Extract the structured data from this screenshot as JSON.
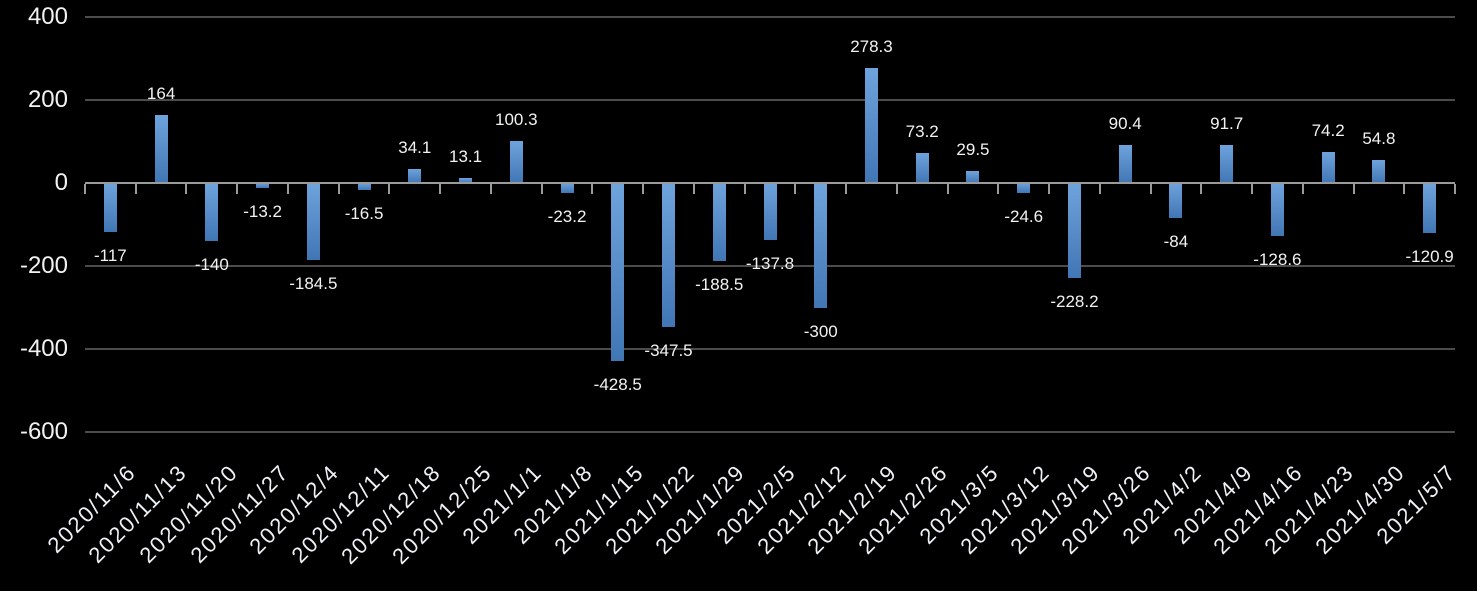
{
  "chart_data": {
    "type": "bar",
    "title": "",
    "xlabel": "",
    "ylabel": "",
    "legend": "none",
    "grid": "horizontal",
    "background_color": "#000000",
    "categories": [
      "2020/11/6",
      "2020/11/13",
      "2020/11/20",
      "2020/11/27",
      "2020/12/4",
      "2020/12/11",
      "2020/12/18",
      "2020/12/25",
      "2021/1/1",
      "2021/1/8",
      "2021/1/15",
      "2021/1/22",
      "2021/1/29",
      "2021/2/5",
      "2021/2/12",
      "2021/2/19",
      "2021/2/26",
      "2021/3/5",
      "2021/3/12",
      "2021/3/19",
      "2021/3/26",
      "2021/4/2",
      "2021/4/9",
      "2021/4/16",
      "2021/4/23",
      "2021/4/30",
      "2021/5/7"
    ],
    "values": [
      -117,
      164,
      -140,
      -13.2,
      -184.5,
      -16.5,
      34.1,
      13.1,
      100.3,
      -23.2,
      -428.5,
      -347.5,
      -188.5,
      -137.8,
      -300,
      278.3,
      73.2,
      29.5,
      -24.6,
      -228.2,
      90.4,
      -84,
      91.7,
      -128.6,
      74.2,
      54.8,
      -120.9
    ],
    "data_labels": [
      "-117",
      "164",
      "-140",
      "-13.2",
      "-184.5",
      "-16.5",
      "34.1",
      "13.1",
      "100.3",
      "-23.2",
      "-428.5",
      "-347.5",
      "-188.5",
      "-137.8",
      "-300",
      "278.3",
      "73.2",
      "29.5",
      "-24.6",
      "-228.2",
      "90.4",
      "-84",
      "91.7",
      "-128.6",
      "74.2",
      "54.8",
      "-120.9"
    ],
    "y_axis": {
      "ticks": [
        400,
        200,
        0,
        -200,
        -400,
        -600
      ],
      "tick_labels": [
        "400",
        "200",
        "0",
        "-200",
        "-400",
        "-600"
      ],
      "ylim": [
        -600,
        400
      ]
    },
    "colors": {
      "bar_gradient_top": "#6FA3DC",
      "bar_gradient_bottom": "#4176B5",
      "gridline": "#4c4c4c",
      "axis": "#9a9a9a",
      "text": "#f2f2f2"
    }
  }
}
